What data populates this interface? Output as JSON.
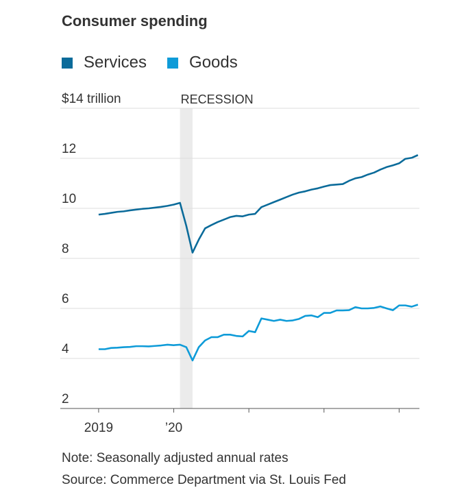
{
  "chart_data": {
    "type": "line",
    "title": "Consumer spending",
    "series": [
      {
        "name": "Services",
        "color": "#0b6b9a",
        "values": [
          9.75,
          9.78,
          9.82,
          9.86,
          9.88,
          9.92,
          9.95,
          9.98,
          10.0,
          10.03,
          10.06,
          10.1,
          10.15,
          10.22,
          9.3,
          8.23,
          8.75,
          9.2,
          9.33,
          9.45,
          9.55,
          9.65,
          9.7,
          9.68,
          9.75,
          9.78,
          10.05,
          10.15,
          10.25,
          10.35,
          10.45,
          10.55,
          10.63,
          10.68,
          10.75,
          10.8,
          10.87,
          10.93,
          10.95,
          10.97,
          11.1,
          11.2,
          11.25,
          11.35,
          11.43,
          11.55,
          11.65,
          11.72,
          11.8,
          11.98,
          12.02,
          12.13
        ]
      },
      {
        "name": "Goods",
        "color": "#0e9bd8",
        "values": [
          4.37,
          4.37,
          4.42,
          4.43,
          4.45,
          4.46,
          4.49,
          4.49,
          4.48,
          4.5,
          4.52,
          4.55,
          4.53,
          4.55,
          4.45,
          3.92,
          4.45,
          4.72,
          4.85,
          4.85,
          4.95,
          4.95,
          4.9,
          4.88,
          5.1,
          5.05,
          5.6,
          5.55,
          5.5,
          5.55,
          5.5,
          5.52,
          5.58,
          5.7,
          5.72,
          5.65,
          5.82,
          5.82,
          5.92,
          5.92,
          5.93,
          6.05,
          6.0,
          6.0,
          6.02,
          6.08,
          6.0,
          5.93,
          6.12,
          6.12,
          6.07,
          6.15
        ]
      }
    ],
    "x": [
      2019,
      2019.083,
      2019.167,
      2019.25,
      2019.333,
      2019.417,
      2019.5,
      2019.583,
      2019.667,
      2019.75,
      2019.833,
      2019.917,
      2020,
      2020.083,
      2020.167,
      2020.25,
      2020.333,
      2020.417,
      2020.5,
      2020.583,
      2020.667,
      2020.75,
      2020.833,
      2020.917,
      2021,
      2021.083,
      2021.167,
      2021.25,
      2021.333,
      2021.417,
      2021.5,
      2021.583,
      2021.667,
      2021.75,
      2021.833,
      2021.917,
      2022,
      2022.083,
      2022.167,
      2022.25,
      2022.333,
      2022.417,
      2022.5,
      2022.583,
      2022.667,
      2022.75,
      2022.833,
      2022.917,
      2023,
      2023.083,
      2023.167,
      2023.25
    ],
    "xlim": [
      2018.49,
      2023.27
    ],
    "xticks": [
      2019,
      {
        "value": 2020,
        "label": "’20"
      },
      {
        "value": 2021,
        "label": null
      },
      {
        "value": 2022,
        "label": null
      },
      {
        "value": 2023,
        "label": null
      }
    ],
    "ylim": [
      2,
      14
    ],
    "yticks": [
      2,
      4,
      6,
      8,
      10,
      12,
      {
        "value": 14,
        "label": "$14 trillion"
      }
    ],
    "grid": true,
    "legend": "top",
    "recession": {
      "label": "RECESSION",
      "start": 2020.083,
      "end": 2020.25
    },
    "notes": [
      "Note: Seasonally adjusted annual rates",
      "Source: Commerce Department via St. Louis Fed"
    ]
  }
}
